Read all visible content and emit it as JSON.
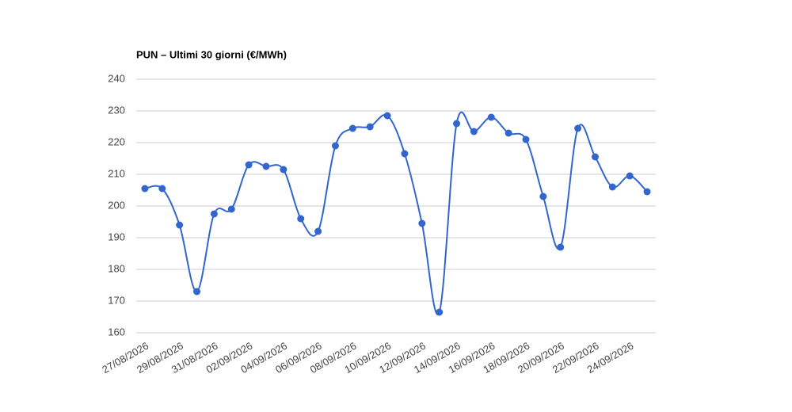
{
  "chart_data": {
    "type": "line",
    "title": "PUN – Ultimi 30 giorni (€/MWh)",
    "categories": [
      "27/08/2026",
      null,
      "29/08/2026",
      null,
      "31/08/2026",
      null,
      "02/09/2026",
      null,
      "04/09/2026",
      null,
      "06/09/2026",
      null,
      "08/09/2026",
      null,
      "10/09/2026",
      null,
      "12/09/2026",
      null,
      "14/09/2026",
      null,
      "16/09/2026",
      null,
      "18/09/2026",
      null,
      "20/09/2026",
      null,
      "22/09/2026",
      null,
      "24/09/2026",
      null
    ],
    "series": [
      {
        "name": "PUN",
        "color": "#3366cc",
        "values": [
          205.5,
          205.5,
          194,
          173,
          197.5,
          199,
          213,
          212.5,
          211.5,
          196,
          192,
          219,
          224.5,
          225,
          228.5,
          216.5,
          194.5,
          166.5,
          226,
          223.5,
          228,
          223,
          221,
          203,
          187,
          224.5,
          215.5,
          206,
          209.5,
          204.5
        ]
      }
    ],
    "ylim": [
      160,
      240
    ],
    "yticks": [
      160,
      170,
      180,
      190,
      200,
      210,
      220,
      230,
      240
    ],
    "grid": true
  }
}
